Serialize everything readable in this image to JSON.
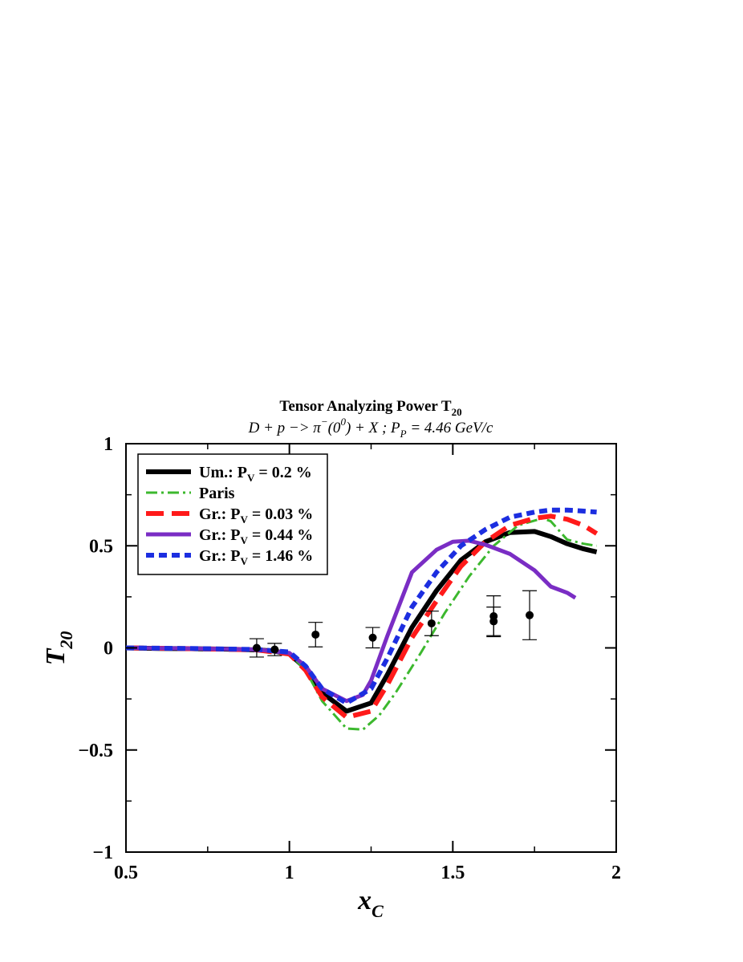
{
  "chart_data": {
    "type": "line",
    "title_parts": {
      "main": "Tensor Analyzing Power T",
      "main_sub": "20",
      "r1": "D + p −> π",
      "r1_sup": "−",
      "r2": "(0",
      "r2_sup": "0",
      "r3": ") + X ;  P",
      "r3_sub": "P",
      "r4": " = 4.46 GeV/c"
    },
    "xlabel_main": "x",
    "xlabel_sub": "C",
    "ylabel_main": "T",
    "ylabel_sub": "20",
    "xlim": [
      0.5,
      2.0
    ],
    "ylim": [
      -1.0,
      1.0
    ],
    "x_ticks": [
      {
        "value": 0.5,
        "label": "0.5"
      },
      {
        "value": 1.0,
        "label": "1"
      },
      {
        "value": 1.5,
        "label": "1.5"
      },
      {
        "value": 2.0,
        "label": "2"
      }
    ],
    "y_ticks": [
      {
        "value": -1.0,
        "label": "−1"
      },
      {
        "value": -0.5,
        "label": "−0.5"
      },
      {
        "value": 0.0,
        "label": "0"
      },
      {
        "value": 0.5,
        "label": "0.5"
      },
      {
        "value": 1.0,
        "label": "1"
      }
    ],
    "legend_position": "top-left",
    "series": [
      {
        "legend": {
          "t1": "Um.: P",
          "sub": "V",
          "t2": " = 0.2 %"
        },
        "color": "#000000",
        "dash": "",
        "width": 6,
        "x": [
          0.5,
          0.6,
          0.7,
          0.8,
          0.9,
          0.95,
          1.0,
          1.05,
          1.1,
          1.175,
          1.25,
          1.3,
          1.375,
          1.45,
          1.525,
          1.6,
          1.675,
          1.75,
          1.8,
          1.85,
          1.9,
          1.94
        ],
        "y": [
          0.0,
          -0.003,
          -0.004,
          -0.006,
          -0.01,
          -0.015,
          -0.03,
          -0.1,
          -0.22,
          -0.31,
          -0.27,
          -0.13,
          0.1,
          0.28,
          0.43,
          0.52,
          0.565,
          0.57,
          0.545,
          0.51,
          0.485,
          0.47
        ]
      },
      {
        "legend": {
          "t1": "Paris",
          "sub": "",
          "t2": ""
        },
        "color": "#3cb82e",
        "dash": "14 5 3 5",
        "width": 3,
        "x": [
          0.5,
          0.7,
          0.9,
          1.0,
          1.05,
          1.1,
          1.175,
          1.225,
          1.275,
          1.325,
          1.4,
          1.475,
          1.55,
          1.625,
          1.7,
          1.775,
          1.8,
          1.85,
          1.9,
          1.94
        ],
        "y": [
          0.0,
          -0.004,
          -0.01,
          -0.03,
          -0.11,
          -0.26,
          -0.395,
          -0.4,
          -0.33,
          -0.22,
          -0.03,
          0.17,
          0.35,
          0.5,
          0.6,
          0.635,
          0.62,
          0.53,
          0.51,
          0.5
        ]
      },
      {
        "legend": {
          "t1": "Gr.: P",
          "sub": "V",
          "t2": " = 0.03 %"
        },
        "color": "#ff1a1a",
        "dash": "22 10",
        "width": 6,
        "x": [
          0.5,
          0.7,
          0.9,
          1.0,
          1.05,
          1.1,
          1.175,
          1.25,
          1.3,
          1.375,
          1.45,
          1.525,
          1.6,
          1.675,
          1.75,
          1.8,
          1.85,
          1.9,
          1.94
        ],
        "y": [
          0.0,
          -0.004,
          -0.01,
          -0.03,
          -0.11,
          -0.24,
          -0.34,
          -0.31,
          -0.18,
          0.05,
          0.23,
          0.4,
          0.52,
          0.6,
          0.635,
          0.645,
          0.63,
          0.6,
          0.56
        ]
      },
      {
        "legend": {
          "t1": "Gr.: P",
          "sub": "V",
          "t2": " = 0.44 %"
        },
        "color": "#7a2dc4",
        "dash": "",
        "width": 5,
        "x": [
          0.5,
          0.7,
          0.9,
          1.0,
          1.05,
          1.1,
          1.175,
          1.225,
          1.25,
          1.3,
          1.375,
          1.45,
          1.5,
          1.55,
          1.6,
          1.675,
          1.75,
          1.8,
          1.85,
          1.875
        ],
        "y": [
          0.0,
          -0.003,
          -0.008,
          -0.025,
          -0.09,
          -0.2,
          -0.26,
          -0.23,
          -0.16,
          0.06,
          0.37,
          0.48,
          0.52,
          0.525,
          0.505,
          0.46,
          0.38,
          0.3,
          0.27,
          0.245
        ]
      },
      {
        "legend": {
          "t1": "Gr.: P",
          "sub": "V",
          "t2": " = 1.46 %"
        },
        "color": "#1c2ee0",
        "dash": "10 6",
        "width": 6,
        "x": [
          0.5,
          0.7,
          0.9,
          1.0,
          1.05,
          1.1,
          1.175,
          1.25,
          1.3,
          1.375,
          1.45,
          1.525,
          1.6,
          1.675,
          1.75,
          1.8,
          1.85,
          1.9,
          1.94
        ],
        "y": [
          0.0,
          -0.003,
          -0.008,
          -0.02,
          -0.09,
          -0.2,
          -0.27,
          -0.2,
          -0.05,
          0.2,
          0.37,
          0.5,
          0.58,
          0.64,
          0.665,
          0.675,
          0.675,
          0.67,
          0.665
        ]
      }
    ],
    "data_points": [
      {
        "x": 0.9,
        "y": 0.0,
        "err": 0.045
      },
      {
        "x": 0.955,
        "y": -0.008,
        "err": 0.03
      },
      {
        "x": 1.08,
        "y": 0.065,
        "err": 0.06
      },
      {
        "x": 1.255,
        "y": 0.05,
        "err": 0.05
      },
      {
        "x": 1.435,
        "y": 0.12,
        "err": 0.06
      },
      {
        "x": 1.625,
        "y": 0.155,
        "err": 0.1
      },
      {
        "x": 1.625,
        "y": 0.13,
        "err": 0.07
      },
      {
        "x": 1.735,
        "y": 0.16,
        "err": 0.12
      }
    ]
  }
}
